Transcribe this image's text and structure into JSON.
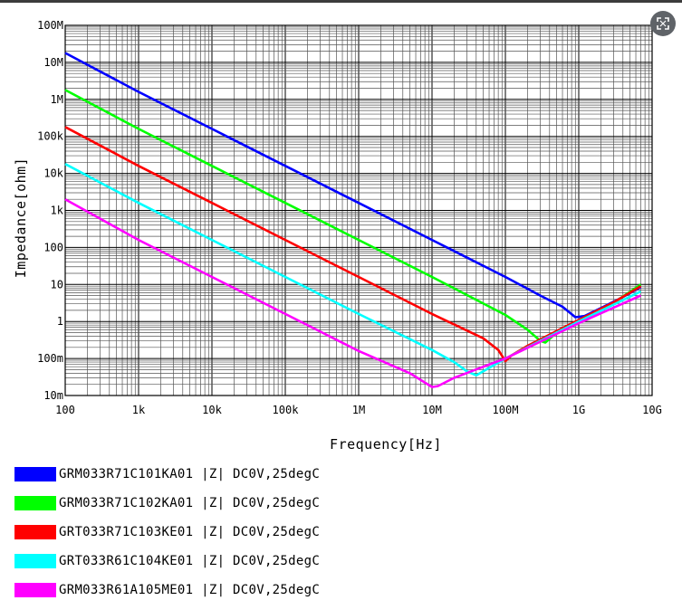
{
  "chart_data": {
    "type": "line",
    "xlabel": "Frequency[Hz]",
    "ylabel": "Impedance[ohm]",
    "x_scale": "log",
    "y_scale": "log",
    "xlim": [
      100,
      10000000000
    ],
    "ylim": [
      0.01,
      100000000
    ],
    "grid": true,
    "x_ticks": [
      {
        "value": 100,
        "label": "100"
      },
      {
        "value": 1000,
        "label": "1k"
      },
      {
        "value": 10000,
        "label": "10k"
      },
      {
        "value": 100000,
        "label": "100k"
      },
      {
        "value": 1000000,
        "label": "1M"
      },
      {
        "value": 10000000,
        "label": "10M"
      },
      {
        "value": 100000000,
        "label": "100M"
      },
      {
        "value": 1000000000,
        "label": "1G"
      },
      {
        "value": 10000000000,
        "label": "10G"
      }
    ],
    "y_ticks": [
      {
        "value": 100000000,
        "label": "100M"
      },
      {
        "value": 10000000,
        "label": "10M"
      },
      {
        "value": 1000000,
        "label": "1M"
      },
      {
        "value": 100000,
        "label": "100k"
      },
      {
        "value": 10000,
        "label": "10k"
      },
      {
        "value": 1000,
        "label": "1k"
      },
      {
        "value": 100,
        "label": "100"
      },
      {
        "value": 10,
        "label": "10"
      },
      {
        "value": 1,
        "label": "1"
      },
      {
        "value": 0.1,
        "label": "100m"
      },
      {
        "value": 0.01,
        "label": "10m"
      }
    ],
    "legend_position": "below",
    "series": [
      {
        "name": "GRM033R71C101KA01 |Z| DC0V,25degC",
        "color": "#0000ff",
        "x": [
          100,
          1000,
          10000,
          100000,
          1000000,
          10000000,
          100000000,
          300000000,
          600000000,
          900000000,
          1200000000,
          2000000000,
          4000000000,
          7000000000
        ],
        "y": [
          18000000,
          1600000,
          160000,
          16000,
          1600,
          160,
          16,
          5,
          2.5,
          1.3,
          1.4,
          2.3,
          4.6,
          8.5
        ]
      },
      {
        "name": "GRM033R71C102KA01 |Z| DC0V,25degC",
        "color": "#00ff00",
        "x": [
          100,
          1000,
          10000,
          100000,
          1000000,
          10000000,
          100000000,
          200000000,
          300000000,
          350000000,
          500000000,
          1000000000,
          3000000000,
          7000000000
        ],
        "y": [
          1800000,
          160000,
          16000,
          1600,
          160,
          16,
          1.5,
          0.6,
          0.3,
          0.27,
          0.5,
          1,
          3.2,
          10
        ]
      },
      {
        "name": "GRT033R71C103KE01 |Z| DC0V,25degC",
        "color": "#ff0000",
        "x": [
          100,
          1000,
          10000,
          100000,
          1000000,
          10000000,
          50000000,
          80000000,
          100000000,
          120000000,
          200000000,
          500000000,
          1000000000,
          3000000000,
          7000000000
        ],
        "y": [
          180000,
          16000,
          1600,
          160,
          16,
          1.6,
          0.35,
          0.17,
          0.085,
          0.12,
          0.22,
          0.55,
          1.1,
          3.3,
          9
        ]
      },
      {
        "name": "GRT033R61C104KE01 |Z| DC0V,25degC",
        "color": "#00ffff",
        "x": [
          100,
          1000,
          10000,
          100000,
          1000000,
          10000000,
          20000000,
          30000000,
          40000000,
          100000000,
          1000000000,
          7000000000
        ],
        "y": [
          18000,
          1600,
          160,
          16,
          1.6,
          0.17,
          0.08,
          0.045,
          0.035,
          0.1,
          1,
          6.5
        ]
      },
      {
        "name": "GRM033R61A105ME01 |Z| DC0V,25degC",
        "color": "#ff00ff",
        "x": [
          100,
          1000,
          10000,
          100000,
          1000000,
          5000000,
          10000000,
          12000000,
          20000000,
          50000000,
          100000000,
          1000000000,
          7000000000
        ],
        "y": [
          2000,
          160,
          16,
          1.6,
          0.16,
          0.04,
          0.017,
          0.018,
          0.03,
          0.06,
          0.1,
          0.9,
          5
        ]
      }
    ]
  },
  "ui": {
    "expand_icon": "expand-icon"
  }
}
